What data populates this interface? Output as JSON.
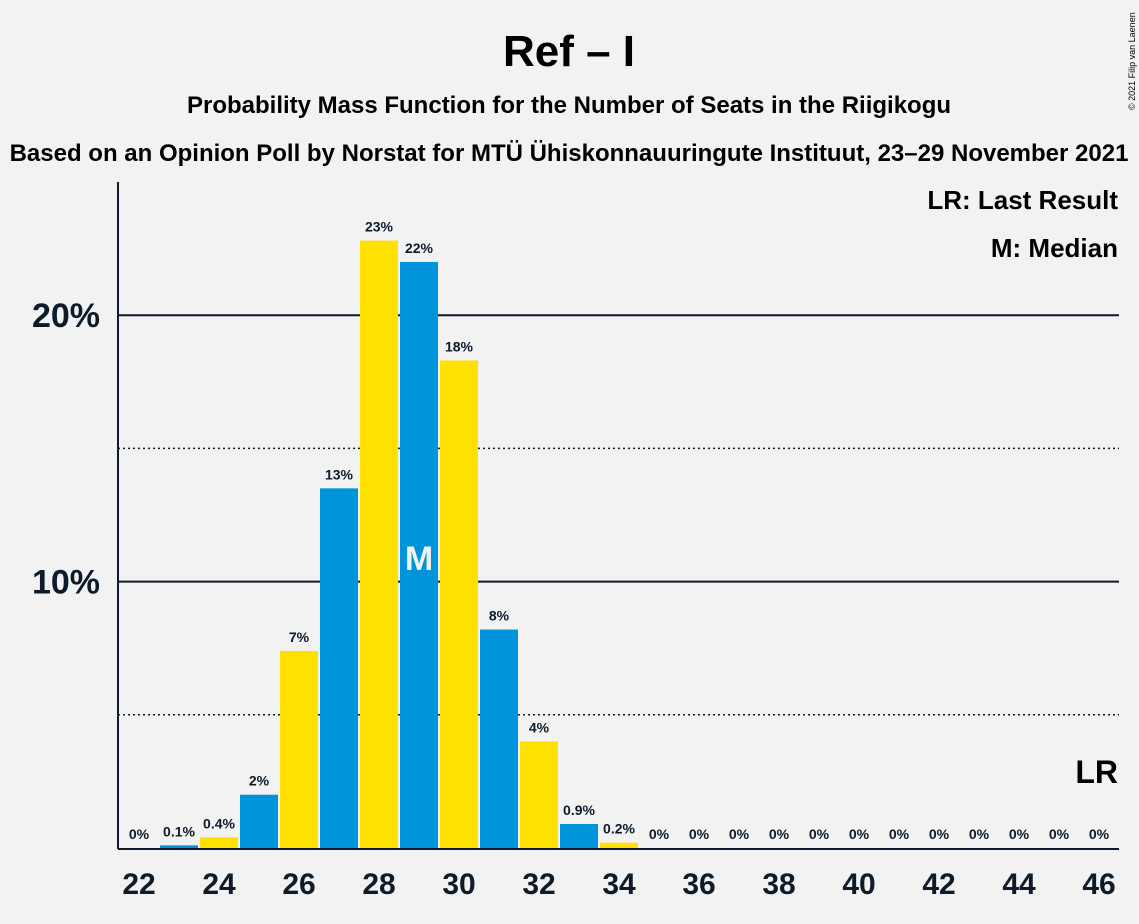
{
  "header": {
    "title": "Ref – I",
    "subtitle": "Probability Mass Function for the Number of Seats in the Riigikogu",
    "source": "Based on an Opinion Poll by Norstat for MTÜ Ühiskonnauuringute Instituut, 23–29 November 2021",
    "copyright": "© 2021 Filip van Laenen"
  },
  "legend": {
    "last_result": "LR: Last Result",
    "median": "M: Median"
  },
  "chart_data": {
    "type": "bar",
    "title": "Ref – I",
    "subtitle": "Probability Mass Function for the Number of Seats in the Riigikogu",
    "xlabel": "",
    "ylabel": "",
    "x": [
      22,
      23,
      24,
      25,
      26,
      27,
      28,
      29,
      30,
      31,
      32,
      33,
      34,
      35,
      36,
      37,
      38,
      39,
      40,
      41,
      42,
      43,
      44,
      45,
      46
    ],
    "values": [
      0,
      0.1,
      0.4,
      2,
      7.4,
      13.5,
      22.8,
      22,
      18.3,
      8.2,
      4,
      0.9,
      0.2,
      0,
      0,
      0,
      0,
      0,
      0,
      0,
      0,
      0,
      0,
      0,
      0
    ],
    "labels": [
      "0%",
      "0.1%",
      "0.4%",
      "2%",
      "7%",
      "13%",
      "23%",
      "22%",
      "18%",
      "8%",
      "4%",
      "0.9%",
      "0.2%",
      "0%",
      "0%",
      "0%",
      "0%",
      "0%",
      "0%",
      "0%",
      "0%",
      "0%",
      "0%",
      "0%",
      "0%"
    ],
    "xticks": [
      22,
      24,
      26,
      28,
      30,
      32,
      34,
      36,
      38,
      40,
      42,
      44,
      46
    ],
    "yticks": [
      {
        "value": 10,
        "label": "10%"
      },
      {
        "value": 20,
        "label": "20%"
      }
    ],
    "y_minor_gridlines": [
      5,
      15
    ],
    "ylim": [
      0,
      25
    ],
    "median_seat": 29,
    "median_marker": "M",
    "last_result_seat": 46,
    "last_result_marker": "LR",
    "legend_position": "top-right",
    "colors": {
      "blue": "#0094DA",
      "yellow": "#FFE000",
      "text": "#0d1b2a",
      "background": "#f2f2f2"
    }
  }
}
